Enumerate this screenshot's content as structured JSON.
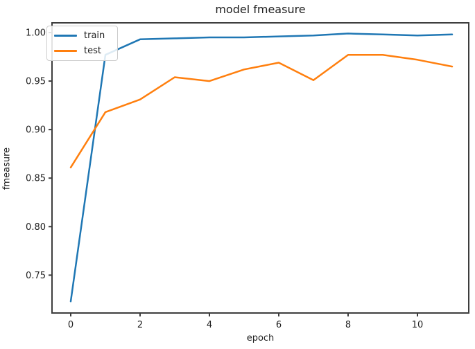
{
  "chart_data": {
    "type": "line",
    "title": "model fmeasure",
    "xlabel": "epoch",
    "ylabel": "fmeasure",
    "x": [
      0,
      1,
      2,
      3,
      4,
      5,
      6,
      7,
      8,
      9,
      10,
      11
    ],
    "series": [
      {
        "name": "train",
        "color": "#1f77b4",
        "values": [
          0.723,
          0.977,
          0.993,
          0.994,
          0.995,
          0.995,
          0.996,
          0.997,
          0.999,
          0.998,
          0.997,
          0.998
        ]
      },
      {
        "name": "test",
        "color": "#ff7f0e",
        "values": [
          0.861,
          0.918,
          0.931,
          0.954,
          0.95,
          0.962,
          0.969,
          0.951,
          0.977,
          0.977,
          0.972,
          0.965
        ]
      }
    ],
    "xlim": [
      -0.54,
      11.48
    ],
    "ylim": [
      0.711,
      1.01
    ],
    "xticks": [
      0,
      2,
      4,
      6,
      8,
      10
    ],
    "yticks": [
      0.75,
      0.8,
      0.85,
      0.9,
      0.95,
      1.0
    ],
    "ytick_decimals": 2,
    "grid": false,
    "legend_position": "upper-left",
    "spine_color": "#3d3d3d"
  }
}
